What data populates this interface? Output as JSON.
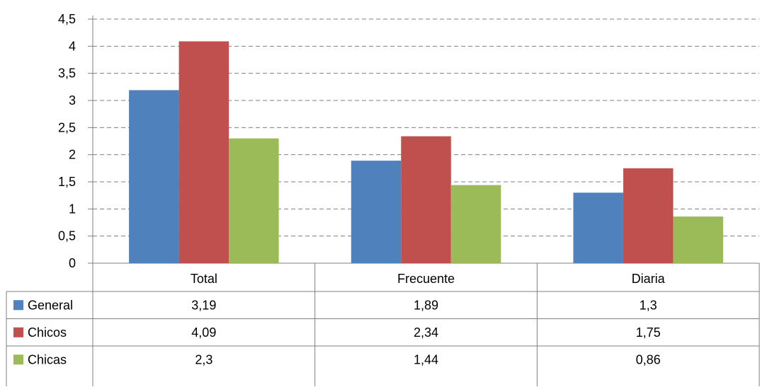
{
  "chart_data": {
    "type": "bar",
    "categories": [
      "Total",
      "Frecuente",
      "Diaria"
    ],
    "series": [
      {
        "name": "General",
        "values": [
          3.19,
          1.89,
          1.3
        ],
        "labels": [
          "3,19",
          "1,89",
          "1,3"
        ],
        "color": "#4F81BD"
      },
      {
        "name": "Chicos",
        "values": [
          4.09,
          2.34,
          1.75
        ],
        "labels": [
          "4,09",
          "2,34",
          "1,75"
        ],
        "color": "#C0504D"
      },
      {
        "name": "Chicas",
        "values": [
          2.3,
          1.44,
          0.86
        ],
        "labels": [
          "2,3",
          "1,44",
          "0,86"
        ],
        "color": "#9BBB59"
      }
    ],
    "ylim": [
      0,
      4.5
    ],
    "yticks": [
      0,
      0.5,
      1,
      1.5,
      2,
      2.5,
      3,
      3.5,
      4,
      4.5
    ],
    "ytick_labels": [
      "0",
      "0,5",
      "1",
      "1,5",
      "2",
      "2,5",
      "3",
      "3,5",
      "4",
      "4,5"
    ],
    "grid": true,
    "grid_style": "dashed",
    "legend": "data-table-left",
    "data_table": true
  }
}
